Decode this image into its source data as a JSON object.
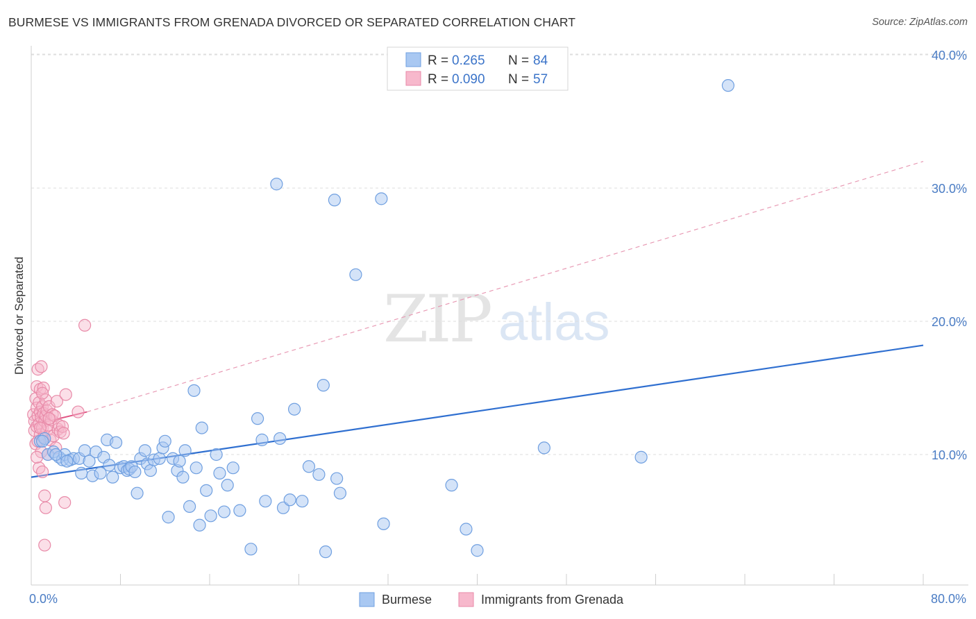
{
  "title": "BURMESE VS IMMIGRANTS FROM GRENADA DIVORCED OR SEPARATED CORRELATION CHART",
  "source": "Source: ZipAtlas.com",
  "watermark": {
    "zip": "ZIP",
    "atlas": "atlas"
  },
  "colors": {
    "blue_fill": "#a9c8f2",
    "blue_stroke": "#6f9fe0",
    "blue_line": "#2f6fd0",
    "pink_fill": "#f7b8cc",
    "pink_stroke": "#e88aa8",
    "pink_line": "#e05584",
    "grid": "#dedede",
    "axis_text": "#4a7cc4"
  },
  "legend": {
    "rows": [
      {
        "r_label": "R = ",
        "r_value": "0.265",
        "n_label": "N = ",
        "n_value": "84"
      },
      {
        "r_label": "R = ",
        "r_value": "0.090",
        "n_label": "N = ",
        "n_value": "57"
      }
    ]
  },
  "bottom_legend": {
    "series1": "Burmese",
    "series2": "Immigrants from Grenada"
  },
  "chart_data": {
    "type": "scatter",
    "title": "BURMESE VS IMMIGRANTS FROM GRENADA DIVORCED OR SEPARATED CORRELATION CHART",
    "xlabel": "",
    "ylabel": "Divorced or Separated",
    "xlim": [
      0,
      80
    ],
    "ylim": [
      0,
      41
    ],
    "y_ticks": [
      {
        "value": 10,
        "label": "10.0%"
      },
      {
        "value": 20,
        "label": "20.0%"
      },
      {
        "value": 30,
        "label": "30.0%"
      },
      {
        "value": 40,
        "label": "40.0%"
      }
    ],
    "x_tick_labels": [
      {
        "value": 0,
        "label": "0.0%"
      },
      {
        "value": 80,
        "label": "80.0%"
      }
    ],
    "x_minor_ticks": [
      8,
      16,
      24,
      32,
      40,
      48,
      56,
      64,
      72,
      80
    ],
    "series": [
      {
        "name": "Burmese",
        "color": "#a9c8f2",
        "trend": {
          "x": [
            0,
            80
          ],
          "y": [
            8.3,
            18.2
          ],
          "style": "solid"
        },
        "points": [
          [
            0.8,
            11.0
          ],
          [
            1.2,
            11.2
          ],
          [
            1.5,
            10.0
          ],
          [
            2.0,
            10.2
          ],
          [
            2.5,
            9.8
          ],
          [
            2.8,
            9.6
          ],
          [
            3.0,
            10.0
          ],
          [
            3.5,
            9.6
          ],
          [
            3.8,
            9.7
          ],
          [
            4.3,
            9.7
          ],
          [
            4.5,
            8.6
          ],
          [
            4.8,
            10.3
          ],
          [
            5.2,
            9.5
          ],
          [
            5.5,
            8.4
          ],
          [
            5.8,
            10.2
          ],
          [
            6.2,
            8.6
          ],
          [
            6.5,
            9.8
          ],
          [
            6.8,
            11.1
          ],
          [
            7.0,
            9.2
          ],
          [
            7.3,
            8.3
          ],
          [
            7.6,
            10.9
          ],
          [
            8.0,
            9.0
          ],
          [
            8.3,
            9.1
          ],
          [
            8.6,
            8.8
          ],
          [
            8.8,
            8.9
          ],
          [
            9.0,
            9.1
          ],
          [
            9.3,
            8.7
          ],
          [
            9.5,
            7.1
          ],
          [
            9.8,
            9.7
          ],
          [
            10.2,
            10.3
          ],
          [
            10.4,
            9.3
          ],
          [
            10.7,
            8.8
          ],
          [
            11.0,
            9.6
          ],
          [
            11.5,
            9.7
          ],
          [
            11.8,
            10.5
          ],
          [
            12.0,
            11.0
          ],
          [
            12.3,
            5.3
          ],
          [
            12.7,
            9.7
          ],
          [
            13.1,
            8.8
          ],
          [
            13.3,
            9.5
          ],
          [
            13.6,
            8.3
          ],
          [
            13.8,
            10.3
          ],
          [
            14.2,
            6.1
          ],
          [
            14.6,
            14.8
          ],
          [
            14.8,
            9.0
          ],
          [
            15.1,
            4.7
          ],
          [
            15.3,
            12.0
          ],
          [
            15.7,
            7.3
          ],
          [
            16.1,
            5.4
          ],
          [
            16.6,
            10.0
          ],
          [
            16.9,
            8.6
          ],
          [
            17.3,
            5.7
          ],
          [
            17.6,
            7.7
          ],
          [
            18.1,
            9.0
          ],
          [
            18.7,
            5.8
          ],
          [
            19.7,
            2.9
          ],
          [
            20.3,
            12.7
          ],
          [
            20.7,
            11.1
          ],
          [
            21.0,
            6.5
          ],
          [
            22.0,
            30.3
          ],
          [
            22.3,
            11.2
          ],
          [
            22.6,
            6.0
          ],
          [
            23.2,
            6.6
          ],
          [
            23.6,
            13.4
          ],
          [
            24.3,
            6.5
          ],
          [
            24.9,
            9.1
          ],
          [
            25.8,
            8.5
          ],
          [
            26.2,
            15.2
          ],
          [
            26.4,
            2.7
          ],
          [
            27.2,
            29.1
          ],
          [
            27.4,
            8.2
          ],
          [
            27.7,
            7.1
          ],
          [
            29.1,
            23.5
          ],
          [
            31.4,
            29.2
          ],
          [
            31.6,
            4.8
          ],
          [
            37.7,
            7.7
          ],
          [
            39.0,
            4.4
          ],
          [
            40.0,
            2.8
          ],
          [
            46.0,
            10.5
          ],
          [
            54.7,
            9.8
          ],
          [
            62.5,
            37.7
          ],
          [
            1.0,
            11.0
          ],
          [
            2.2,
            10.0
          ],
          [
            3.2,
            9.5
          ]
        ]
      },
      {
        "name": "Immigrants from Grenada",
        "color": "#f7b8cc",
        "trend": {
          "x": [
            0,
            5
          ],
          "y": [
            12.2,
            13.2
          ],
          "style": "solid",
          "extended": {
            "x": [
              5,
              80
            ],
            "y": [
              13.2,
              32.0
            ],
            "style": "dashed"
          }
        },
        "points": [
          [
            0.2,
            13.0
          ],
          [
            0.3,
            12.5
          ],
          [
            0.3,
            11.8
          ],
          [
            0.4,
            14.2
          ],
          [
            0.4,
            10.8
          ],
          [
            0.5,
            13.5
          ],
          [
            0.5,
            12.1
          ],
          [
            0.5,
            15.1
          ],
          [
            0.6,
            16.4
          ],
          [
            0.6,
            12.9
          ],
          [
            0.6,
            11.0
          ],
          [
            0.7,
            13.9
          ],
          [
            0.7,
            12.3
          ],
          [
            0.7,
            9.0
          ],
          [
            0.8,
            14.9
          ],
          [
            0.8,
            13.2
          ],
          [
            0.8,
            11.5
          ],
          [
            0.9,
            12.8
          ],
          [
            0.9,
            10.2
          ],
          [
            0.9,
            16.6
          ],
          [
            1.0,
            13.6
          ],
          [
            1.0,
            12.0
          ],
          [
            1.0,
            8.7
          ],
          [
            1.1,
            15.0
          ],
          [
            1.1,
            11.3
          ],
          [
            1.1,
            13.1
          ],
          [
            1.2,
            12.5
          ],
          [
            1.2,
            6.9
          ],
          [
            1.2,
            3.2
          ],
          [
            1.3,
            14.1
          ],
          [
            1.3,
            12.9
          ],
          [
            1.3,
            6.0
          ],
          [
            1.4,
            11.8
          ],
          [
            1.4,
            13.3
          ],
          [
            1.5,
            10.0
          ],
          [
            1.5,
            12.2
          ],
          [
            1.6,
            13.6
          ],
          [
            1.7,
            11.1
          ],
          [
            1.8,
            12.6
          ],
          [
            1.9,
            13.0
          ],
          [
            2.0,
            11.4
          ],
          [
            2.1,
            12.9
          ],
          [
            2.2,
            10.5
          ],
          [
            2.3,
            14.0
          ],
          [
            2.4,
            11.9
          ],
          [
            2.5,
            12.2
          ],
          [
            2.6,
            11.7
          ],
          [
            2.8,
            12.1
          ],
          [
            2.9,
            11.6
          ],
          [
            3.0,
            6.4
          ],
          [
            3.1,
            14.5
          ],
          [
            4.2,
            13.2
          ],
          [
            4.8,
            19.7
          ],
          [
            0.5,
            9.8
          ],
          [
            1.0,
            14.6
          ],
          [
            1.6,
            12.7
          ],
          [
            0.8,
            12.0
          ]
        ]
      }
    ]
  }
}
